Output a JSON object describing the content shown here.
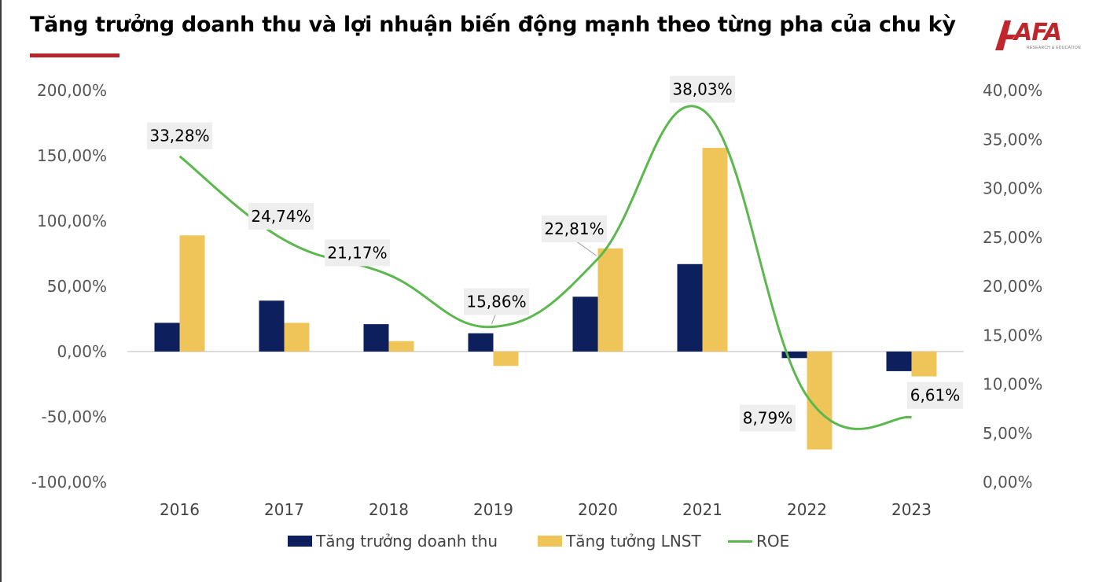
{
  "title": "Tăng trưởng doanh thu và lợi nhuận biến động mạnh theo từng pha của chu kỳ",
  "logo": {
    "text": "AFA",
    "subtext": "RESEARCH & EDUCATION",
    "color": "#c0272d"
  },
  "colors": {
    "accent": "#b5252b",
    "revenue": "#0d1f5c",
    "profit": "#efc55a",
    "roe": "#5cb84e",
    "label_box": "#eeeeee"
  },
  "legend": {
    "revenue": "Tăng trưởng doanh thu",
    "profit": "Tăng tưởng LNST",
    "roe": "ROE"
  },
  "chart_data": {
    "type": "bar",
    "title": "Tăng trưởng doanh thu và lợi nhuận biến động mạnh theo từng pha của chu kỳ",
    "categories": [
      "2016",
      "2017",
      "2018",
      "2019",
      "2020",
      "2021",
      "2022",
      "2023"
    ],
    "series": [
      {
        "name": "Tăng trưởng doanh thu",
        "type": "bar",
        "axis": "left",
        "values": [
          22,
          39,
          21,
          14,
          42,
          67,
          -5,
          -15
        ]
      },
      {
        "name": "Tăng tưởng LNST",
        "type": "bar",
        "axis": "left",
        "values": [
          89,
          22,
          8,
          -11,
          79,
          156,
          -75,
          -19
        ]
      },
      {
        "name": "ROE",
        "type": "line",
        "axis": "right",
        "values": [
          33.28,
          24.74,
          21.17,
          15.86,
          22.81,
          38.03,
          8.79,
          6.61
        ]
      }
    ],
    "roe_labels": [
      "33,28%",
      "24,74%",
      "21,17%",
      "15,86%",
      "22,81%",
      "38,03%",
      "8,79%",
      "6,61%"
    ],
    "y_left": {
      "ylim": [
        -100,
        200
      ],
      "ticks": [
        200,
        150,
        100,
        50,
        0,
        -50,
        -100
      ],
      "tick_labels": [
        "200,00%",
        "150,00%",
        "100,00%",
        "50,00%",
        "0,00%",
        "-50,00%",
        "-100,00%"
      ]
    },
    "y_right": {
      "ylim": [
        0,
        40
      ],
      "ticks": [
        40,
        35,
        30,
        25,
        20,
        15,
        10,
        5,
        0
      ],
      "tick_labels": [
        "40,00%",
        "35,00%",
        "30,00%",
        "25,00%",
        "20,00%",
        "15,00%",
        "10,00%",
        "5,00%",
        "0,00%"
      ]
    },
    "grid": false,
    "legend_position": "bottom"
  }
}
